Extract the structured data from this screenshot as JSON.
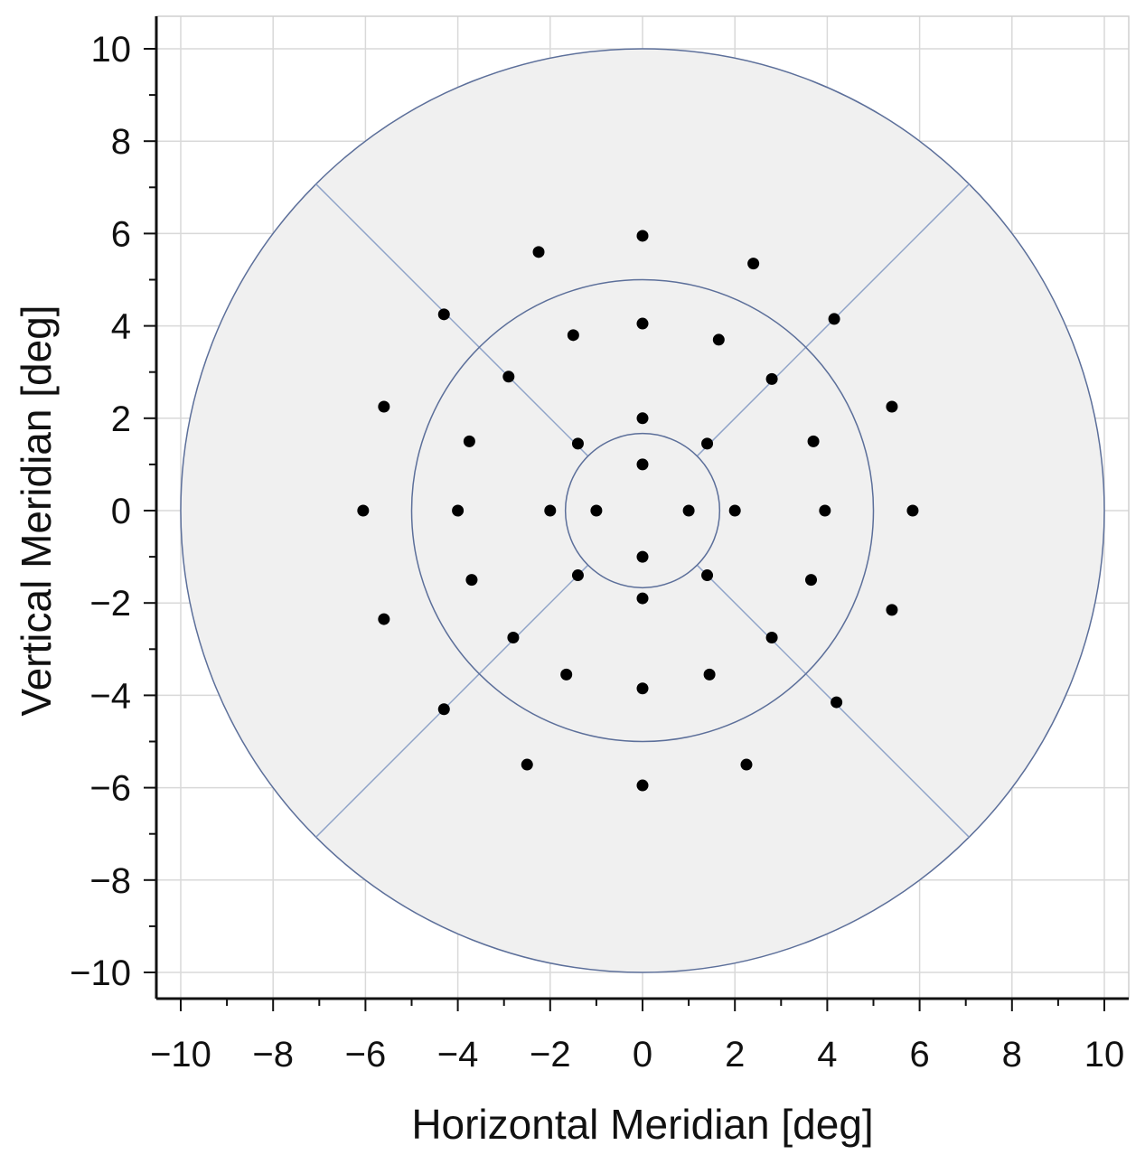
{
  "chart_data": {
    "type": "scatter",
    "title": "",
    "xlabel": "Horizontal Meridian [deg]",
    "ylabel": "Vertical Meridian [deg]",
    "xlim": [
      -10.5,
      10.5
    ],
    "ylim": [
      -10.5,
      10.5
    ],
    "xticks": [
      -10,
      -8,
      -6,
      -4,
      -2,
      0,
      2,
      4,
      6,
      8,
      10
    ],
    "yticks": [
      -10,
      -8,
      -6,
      -4,
      -2,
      0,
      2,
      4,
      6,
      8,
      10
    ],
    "xtick_labels": [
      "−10",
      "−8",
      "−6",
      "−4",
      "−2",
      "0",
      "2",
      "4",
      "6",
      "8",
      "10"
    ],
    "ytick_labels": [
      "−10",
      "−8",
      "−6",
      "−4",
      "−2",
      "0",
      "2",
      "4",
      "6",
      "8",
      "10"
    ],
    "grid": true,
    "region_rings_deg": [
      1.67,
      5,
      10
    ],
    "quadrant_divider_angles_deg": [
      45,
      135,
      225,
      315
    ],
    "colors": {
      "region_fill": "#f0f0f0",
      "ring_stroke": "#5c6f9a",
      "divider_stroke": "#8fa3c8",
      "grid": "#d9d9d9",
      "point": "#000000",
      "axis": "#111111"
    },
    "points": [
      {
        "x": 0,
        "y": 1
      },
      {
        "x": 1,
        "y": 0
      },
      {
        "x": 0,
        "y": -1
      },
      {
        "x": -1,
        "y": 0
      },
      {
        "x": 0,
        "y": 2
      },
      {
        "x": 1.4,
        "y": 1.45
      },
      {
        "x": 2,
        "y": 0
      },
      {
        "x": 1.4,
        "y": -1.4
      },
      {
        "x": 0,
        "y": -1.9
      },
      {
        "x": -1.4,
        "y": -1.4
      },
      {
        "x": -2,
        "y": 0
      },
      {
        "x": -1.4,
        "y": 1.45
      },
      {
        "x": 0,
        "y": 4.05
      },
      {
        "x": 1.65,
        "y": 3.7
      },
      {
        "x": 2.8,
        "y": 2.85
      },
      {
        "x": 3.7,
        "y": 1.5
      },
      {
        "x": 3.95,
        "y": 0
      },
      {
        "x": 3.65,
        "y": -1.5
      },
      {
        "x": 2.8,
        "y": -2.75
      },
      {
        "x": 1.45,
        "y": -3.55
      },
      {
        "x": 0,
        "y": -3.85
      },
      {
        "x": -1.65,
        "y": -3.55
      },
      {
        "x": -2.8,
        "y": -2.75
      },
      {
        "x": -3.7,
        "y": -1.5
      },
      {
        "x": -4,
        "y": 0
      },
      {
        "x": -3.75,
        "y": 1.5
      },
      {
        "x": -2.9,
        "y": 2.9
      },
      {
        "x": -1.5,
        "y": 3.8
      },
      {
        "x": 0,
        "y": 5.95
      },
      {
        "x": 2.4,
        "y": 5.35
      },
      {
        "x": 4.15,
        "y": 4.15
      },
      {
        "x": 5.4,
        "y": 2.25
      },
      {
        "x": 5.85,
        "y": 0
      },
      {
        "x": 5.4,
        "y": -2.15
      },
      {
        "x": 4.2,
        "y": -4.15
      },
      {
        "x": 2.25,
        "y": -5.5
      },
      {
        "x": 0,
        "y": -5.95
      },
      {
        "x": -2.5,
        "y": -5.5
      },
      {
        "x": -4.3,
        "y": -4.3
      },
      {
        "x": -5.6,
        "y": -2.35
      },
      {
        "x": -6.05,
        "y": 0
      },
      {
        "x": -5.6,
        "y": 2.25
      },
      {
        "x": -4.3,
        "y": 4.25
      },
      {
        "x": -2.25,
        "y": 5.6
      }
    ]
  }
}
